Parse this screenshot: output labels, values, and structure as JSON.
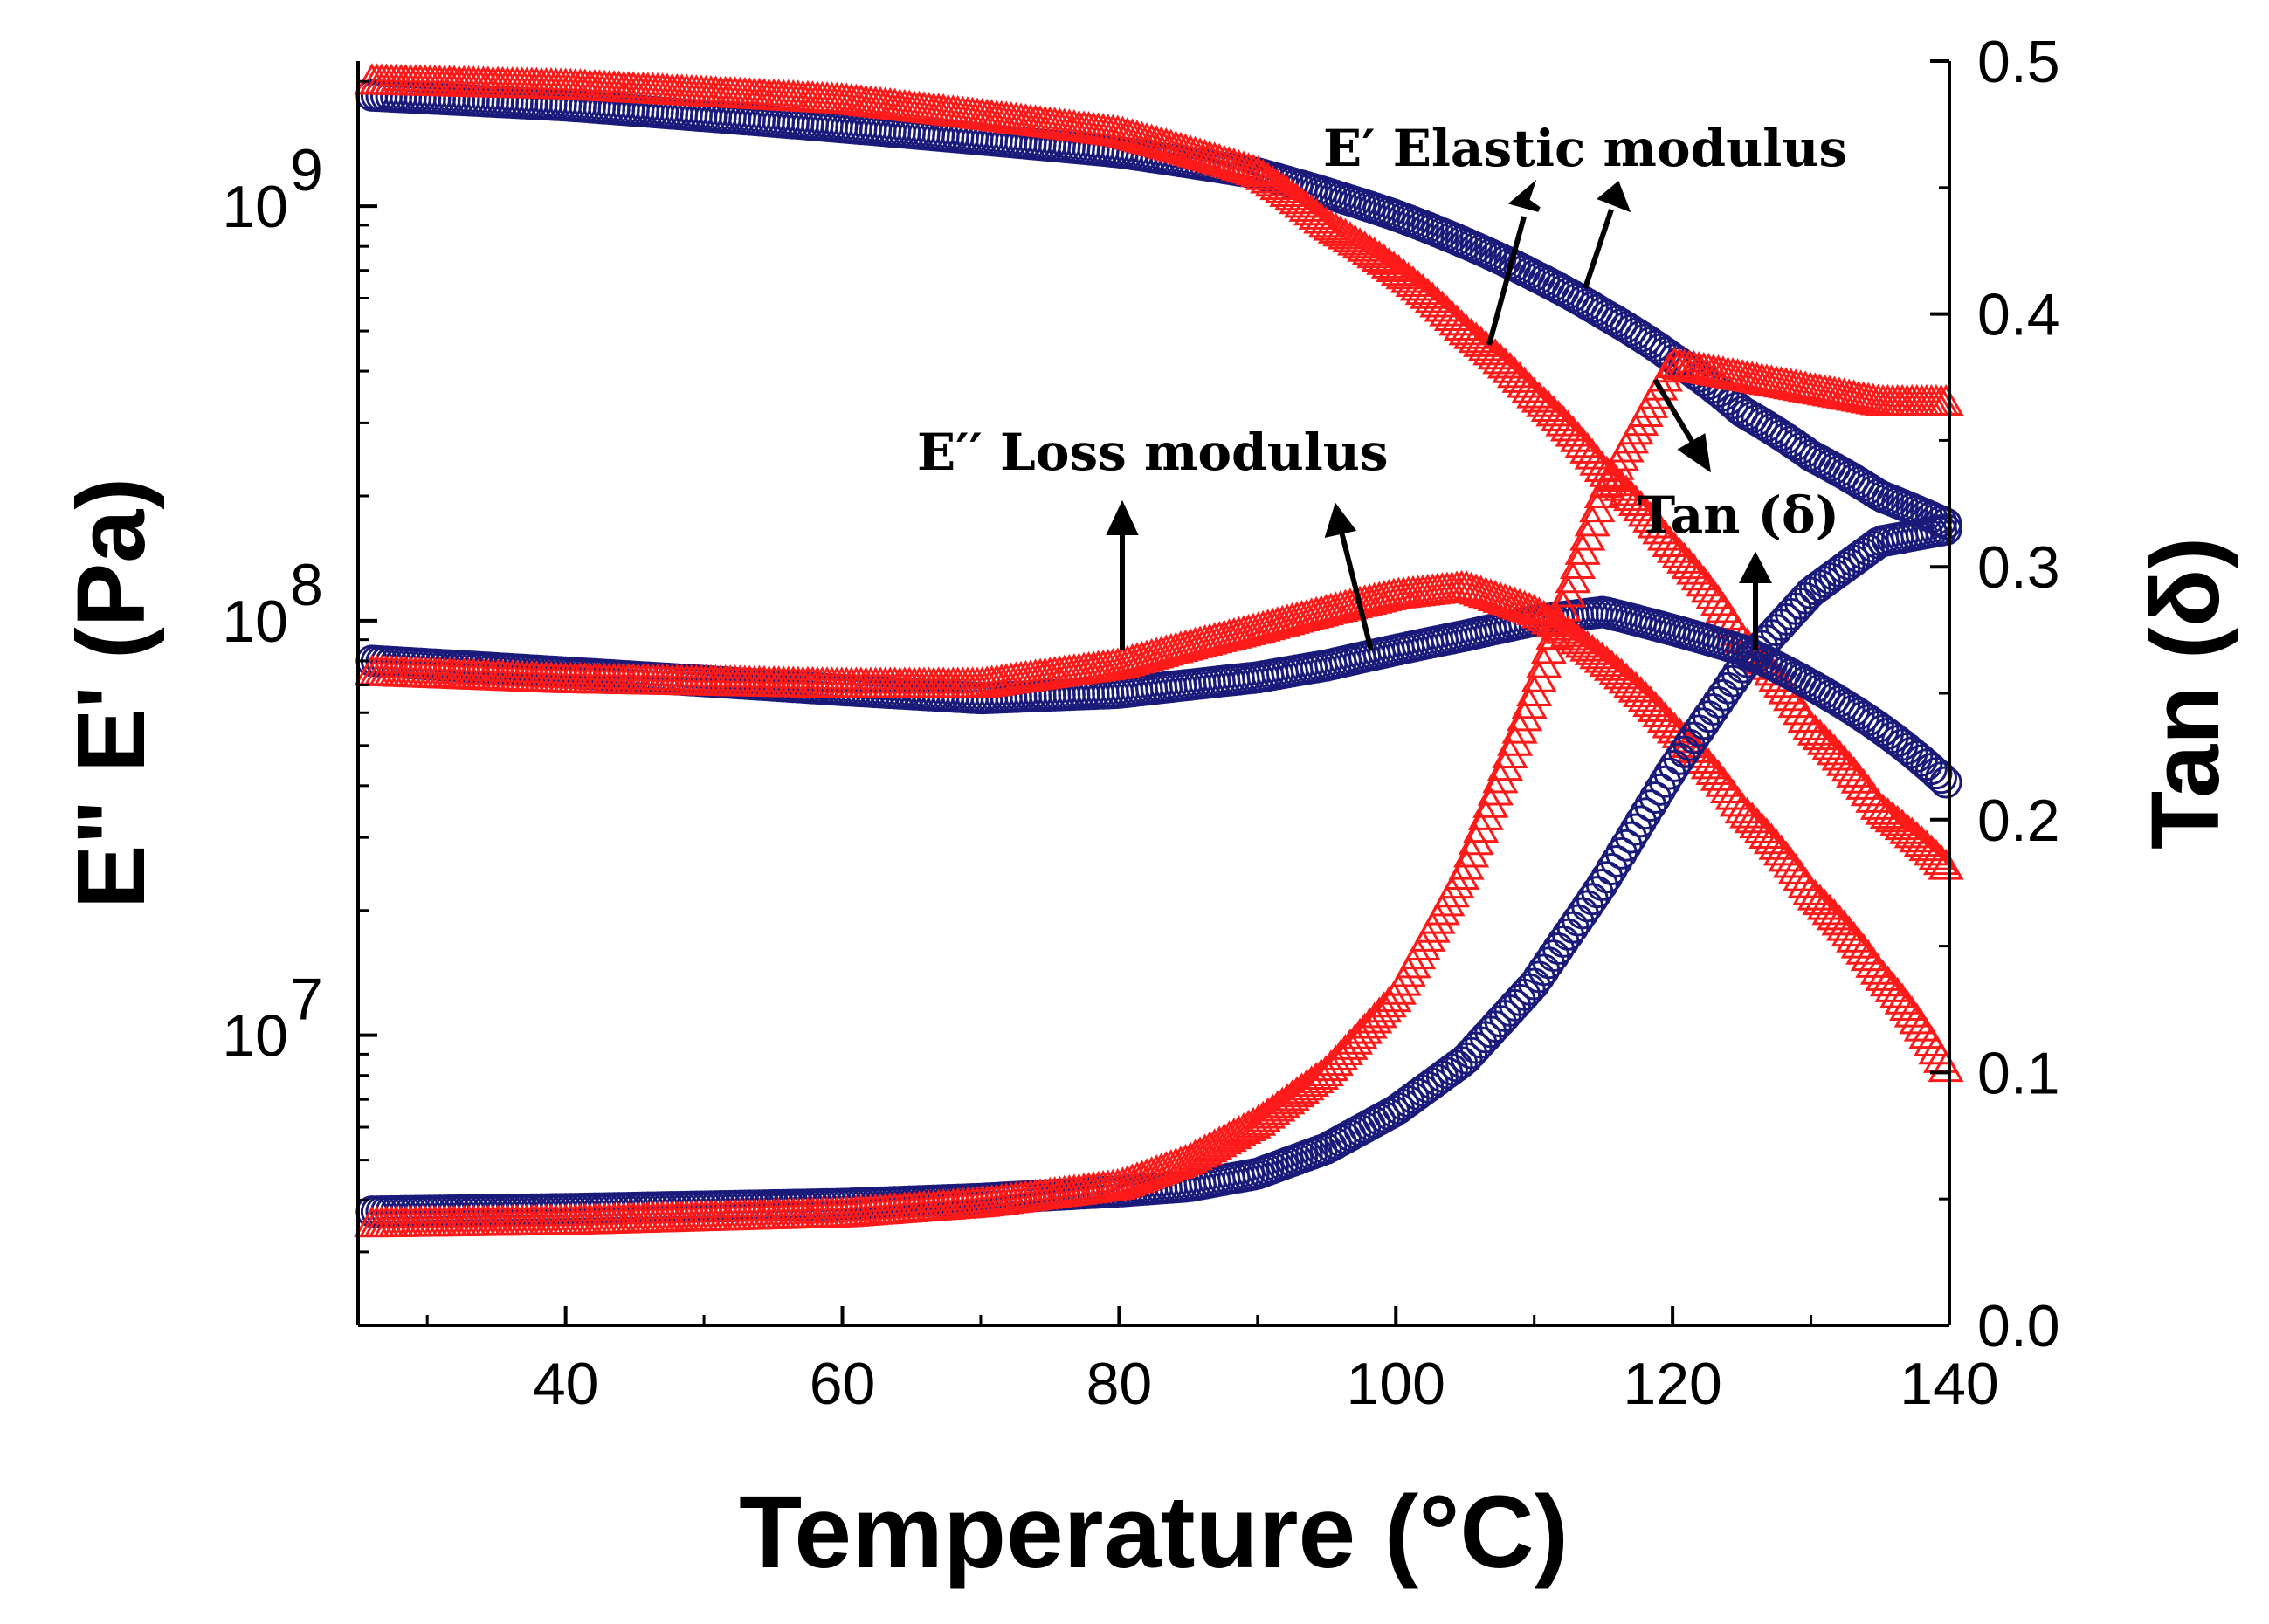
{
  "chart_data": {
    "type": "scatter",
    "title": "",
    "xlabel": "Temperature (°C)",
    "ylabel_left": "E\" E' (Pa)",
    "ylabel_right": "Tan (δ)",
    "xlim": [
      25,
      140
    ],
    "ylim_left_log10": [
      6.3,
      9.35
    ],
    "ylim_right": [
      0.0,
      0.5
    ],
    "x_ticks": [
      {
        "value": 40,
        "label": "40"
      },
      {
        "value": 60,
        "label": "60"
      },
      {
        "value": 80,
        "label": "80"
      },
      {
        "value": 100,
        "label": "100"
      },
      {
        "value": 120,
        "label": "120"
      },
      {
        "value": 140,
        "label": "140"
      }
    ],
    "y_left_ticks": [
      {
        "exp": 7,
        "base": "10",
        "power": "7"
      },
      {
        "exp": 8,
        "base": "10",
        "power": "8"
      },
      {
        "exp": 9,
        "base": "10",
        "power": "9"
      }
    ],
    "y_right_ticks": [
      {
        "value": 0.0,
        "label": "0.0"
      },
      {
        "value": 0.1,
        "label": "0.1"
      },
      {
        "value": 0.2,
        "label": "0.2"
      },
      {
        "value": 0.3,
        "label": "0.3"
      },
      {
        "value": 0.4,
        "label": "0.4"
      },
      {
        "value": 0.5,
        "label": "0.5"
      }
    ],
    "series": [
      {
        "name": "E' Elastic modulus (circles)",
        "marker": "circle",
        "color": "#1a1a7a",
        "axis": "left",
        "points": [
          [
            26,
            1850000000.0
          ],
          [
            40,
            1750000000.0
          ],
          [
            60,
            1550000000.0
          ],
          [
            80,
            1350000000.0
          ],
          [
            90,
            1200000000.0
          ],
          [
            100,
            950000000.0
          ],
          [
            110,
            680000000.0
          ],
          [
            115,
            550000000.0
          ],
          [
            120,
            430000000.0
          ],
          [
            125,
            320000000.0
          ],
          [
            130,
            250000000.0
          ],
          [
            135,
            200000000.0
          ],
          [
            140,
            170000000.0
          ]
        ]
      },
      {
        "name": "E' Elastic modulus (triangles)",
        "marker": "triangle",
        "color": "#ff1a1a",
        "axis": "left",
        "points": [
          [
            26,
            2000000000.0
          ],
          [
            40,
            1950000000.0
          ],
          [
            60,
            1800000000.0
          ],
          [
            80,
            1500000000.0
          ],
          [
            90,
            1200000000.0
          ],
          [
            95,
            900000000.0
          ],
          [
            100,
            700000000.0
          ],
          [
            105,
            500000000.0
          ],
          [
            110,
            350000000.0
          ],
          [
            115,
            230000000.0
          ],
          [
            120,
            150000000.0
          ],
          [
            125,
            90000000.0
          ],
          [
            130,
            55000000.0
          ],
          [
            135,
            35000000.0
          ],
          [
            140,
            25000000.0
          ]
        ]
      },
      {
        "name": "E'' Loss modulus (circles)",
        "marker": "circle",
        "color": "#1a1a7a",
        "axis": "left",
        "points": [
          [
            26,
            80000000.0
          ],
          [
            40,
            75000000.0
          ],
          [
            60,
            68000000.0
          ],
          [
            70,
            65000000.0
          ],
          [
            80,
            67000000.0
          ],
          [
            90,
            73000000.0
          ],
          [
            95,
            78000000.0
          ],
          [
            100,
            85000000.0
          ],
          [
            105,
            92000000.0
          ],
          [
            110,
            100000000.0
          ],
          [
            115,
            105000000.0
          ],
          [
            120,
            95000000.0
          ],
          [
            125,
            85000000.0
          ],
          [
            130,
            70000000.0
          ],
          [
            135,
            55000000.0
          ],
          [
            140,
            40000000.0
          ]
        ]
      },
      {
        "name": "E'' Loss modulus (triangles)",
        "marker": "triangle",
        "color": "#ff1a1a",
        "axis": "left",
        "points": [
          [
            26,
            75000000.0
          ],
          [
            40,
            72000000.0
          ],
          [
            60,
            70000000.0
          ],
          [
            70,
            70000000.0
          ],
          [
            80,
            78000000.0
          ],
          [
            90,
            95000000.0
          ],
          [
            100,
            115000000.0
          ],
          [
            105,
            120000000.0
          ],
          [
            110,
            105000000.0
          ],
          [
            115,
            80000000.0
          ],
          [
            120,
            55000000.0
          ],
          [
            125,
            35000000.0
          ],
          [
            130,
            22000000.0
          ],
          [
            135,
            14000000.0
          ],
          [
            140,
            8000000.0
          ]
        ]
      },
      {
        "name": "Tan (δ) (circles)",
        "marker": "circle",
        "color": "#1a1a7a",
        "axis": "right",
        "points": [
          [
            26,
            0.045
          ],
          [
            40,
            0.046
          ],
          [
            60,
            0.048
          ],
          [
            70,
            0.05
          ],
          [
            80,
            0.053
          ],
          [
            85,
            0.055
          ],
          [
            90,
            0.06
          ],
          [
            95,
            0.07
          ],
          [
            100,
            0.085
          ],
          [
            105,
            0.105
          ],
          [
            110,
            0.135
          ],
          [
            115,
            0.175
          ],
          [
            120,
            0.22
          ],
          [
            125,
            0.26
          ],
          [
            130,
            0.29
          ],
          [
            135,
            0.31
          ],
          [
            140,
            0.315
          ]
        ]
      },
      {
        "name": "Tan (δ) (triangles)",
        "marker": "triangle",
        "color": "#ff1a1a",
        "axis": "right",
        "points": [
          [
            26,
            0.04
          ],
          [
            40,
            0.041
          ],
          [
            60,
            0.044
          ],
          [
            70,
            0.048
          ],
          [
            80,
            0.055
          ],
          [
            85,
            0.065
          ],
          [
            90,
            0.08
          ],
          [
            95,
            0.1
          ],
          [
            100,
            0.13
          ],
          [
            105,
            0.18
          ],
          [
            110,
            0.25
          ],
          [
            115,
            0.33
          ],
          [
            120,
            0.38
          ],
          [
            125,
            0.375
          ],
          [
            130,
            0.37
          ],
          [
            135,
            0.365
          ],
          [
            140,
            0.365
          ]
        ]
      }
    ],
    "annotations": [
      {
        "text": "E′ Elastic modulus"
      },
      {
        "text": "E′′ Loss modulus"
      },
      {
        "text": "Tan (δ)"
      }
    ],
    "grid": false,
    "legend": "none"
  }
}
